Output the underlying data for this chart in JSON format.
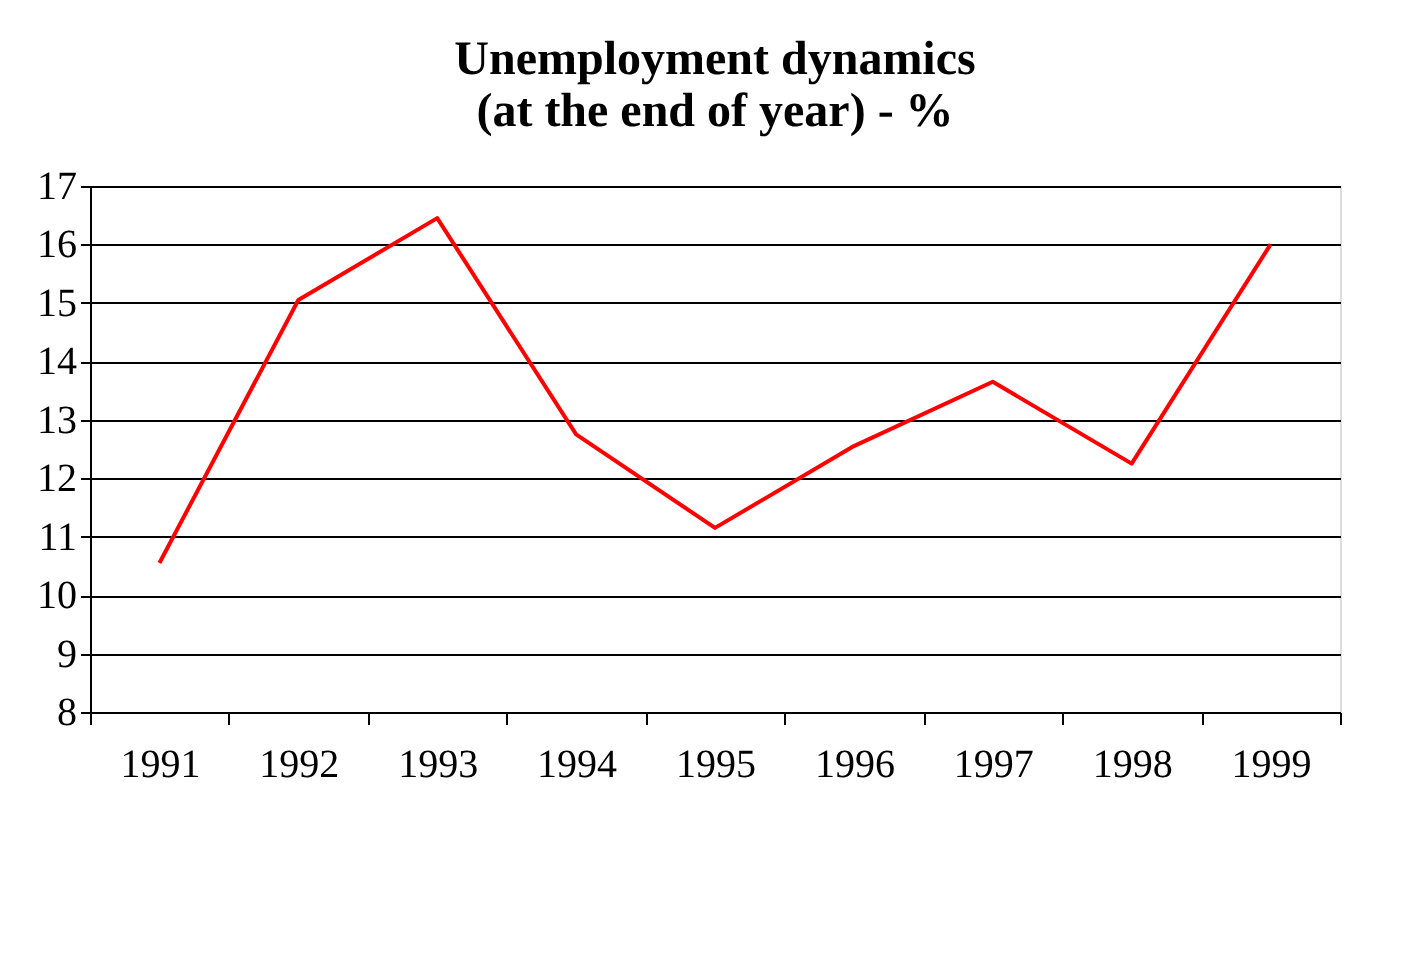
{
  "chart_data": {
    "type": "line",
    "title": [
      "Unemployment dynamics",
      "(at the end of year) - %"
    ],
    "categories": [
      "1991",
      "1992",
      "1993",
      "1994",
      "1995",
      "1996",
      "1997",
      "1998",
      "1999"
    ],
    "series": [
      {
        "color": "#ff0000",
        "values": [
          10.55,
          15.05,
          16.45,
          12.75,
          11.15,
          12.55,
          13.65,
          12.25,
          16.0
        ]
      }
    ],
    "ylim": [
      8,
      17
    ],
    "yticks": [
      8,
      9,
      10,
      11,
      12,
      13,
      14,
      15,
      16,
      17
    ],
    "grid": "y",
    "legend": false,
    "marker": "none",
    "line_style": "solid"
  }
}
